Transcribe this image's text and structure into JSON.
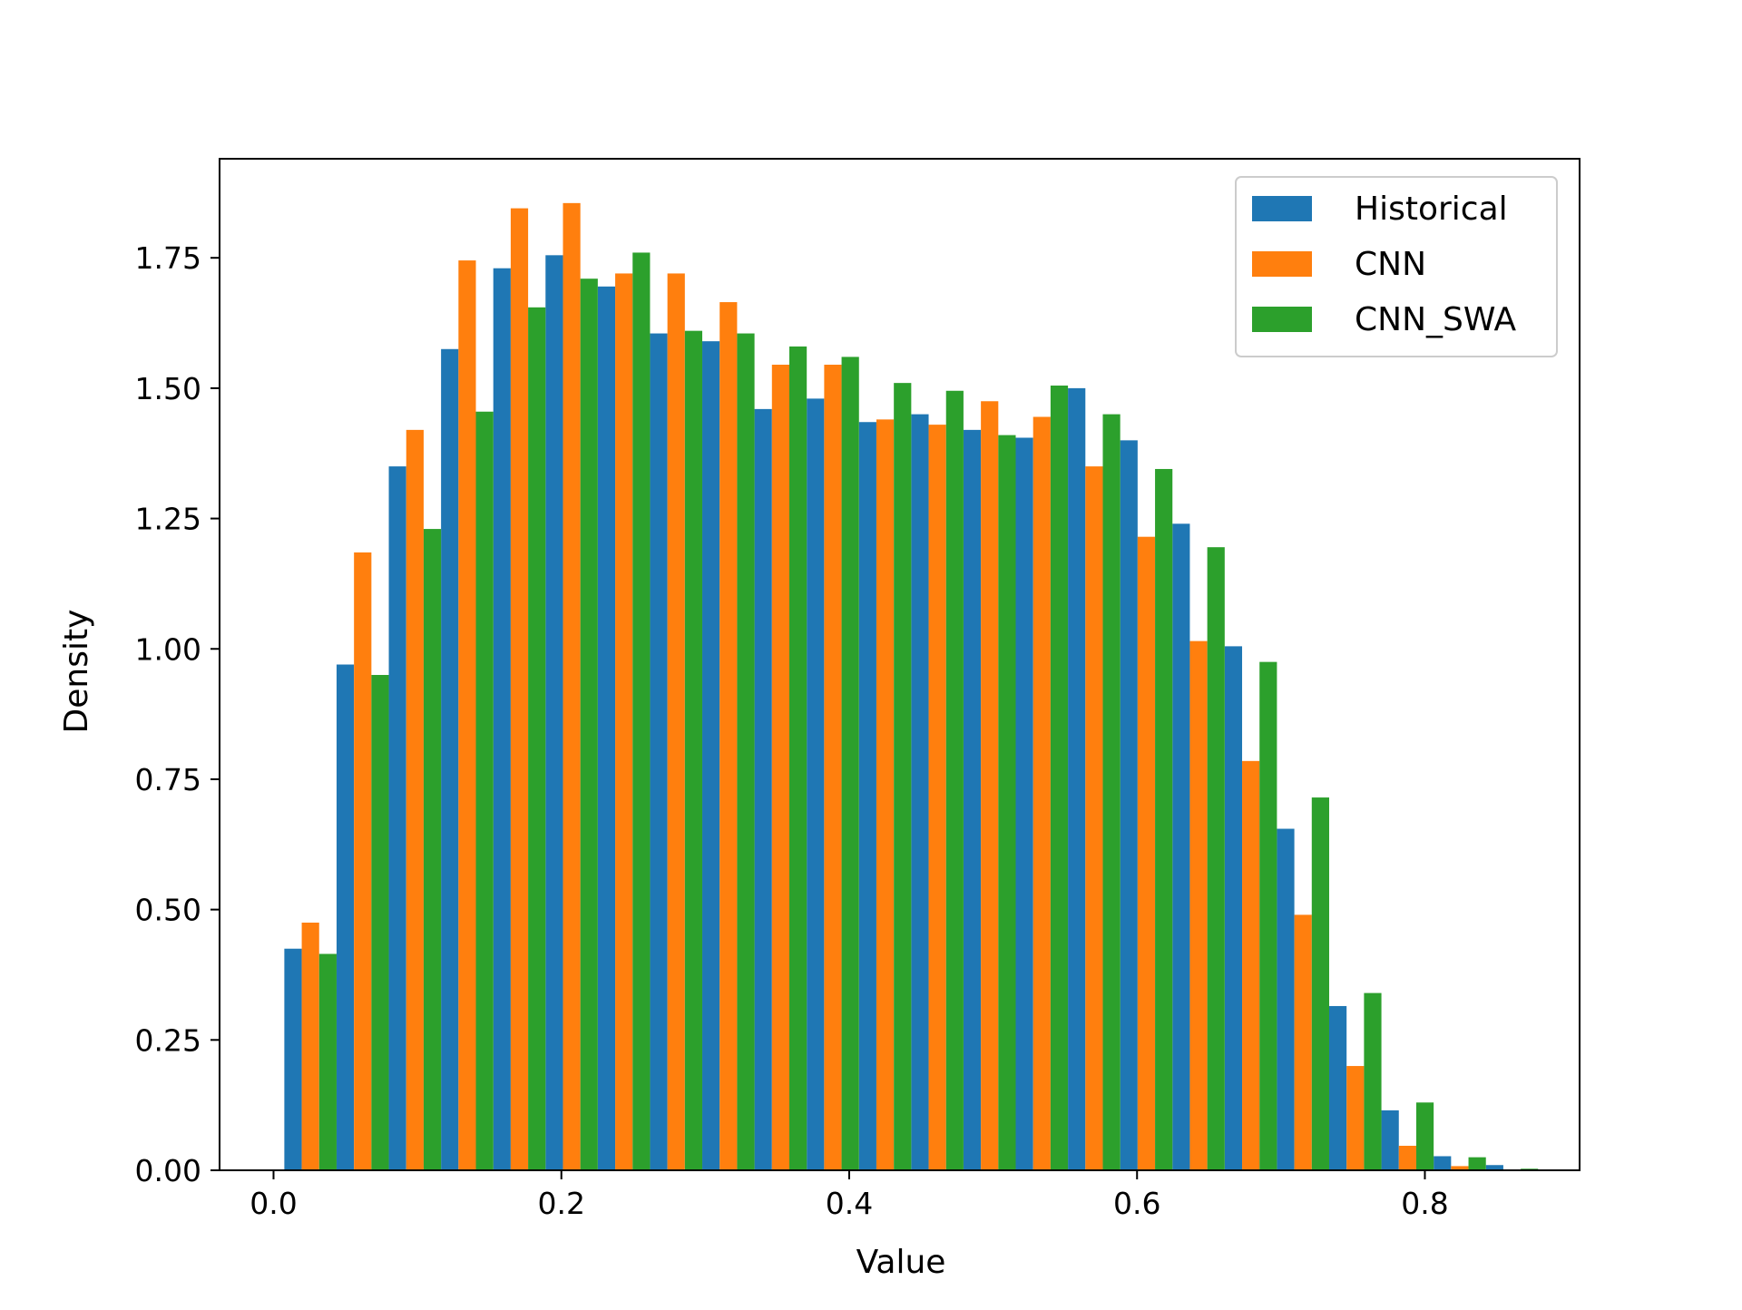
{
  "chart_data": {
    "type": "bar",
    "xlabel": "Value",
    "ylabel": "Density",
    "xlim": [
      -0.0375,
      0.9075
    ],
    "ylim": [
      0,
      1.94
    ],
    "x_ticks": [
      "0.0",
      "0.2",
      "0.4",
      "0.6",
      "0.8"
    ],
    "y_ticks": [
      "0.00",
      "0.25",
      "0.50",
      "0.75",
      "1.00",
      "1.25",
      "1.50",
      "1.75"
    ],
    "grid": false,
    "legend_position": "top-right",
    "bin_start": 0.0075,
    "bin_width": 0.0363,
    "bin_count": 24,
    "series": [
      {
        "name": "Historical",
        "color": "#1f77b4",
        "values": [
          0.425,
          0.97,
          1.35,
          1.575,
          1.73,
          1.755,
          1.695,
          1.605,
          1.59,
          1.46,
          1.48,
          1.435,
          1.45,
          1.42,
          1.405,
          1.5,
          1.4,
          1.24,
          1.005,
          0.655,
          0.315,
          0.115,
          0.027,
          0.01
        ]
      },
      {
        "name": "CNN",
        "color": "#ff7f0e",
        "values": [
          0.475,
          1.185,
          1.42,
          1.745,
          1.845,
          1.855,
          1.72,
          1.72,
          1.665,
          1.545,
          1.545,
          1.44,
          1.43,
          1.475,
          1.445,
          1.35,
          1.215,
          1.015,
          0.785,
          0.49,
          0.2,
          0.047,
          0.008,
          0.0
        ]
      },
      {
        "name": "CNN_SWA",
        "color": "#2ca02c",
        "values": [
          0.415,
          0.95,
          1.23,
          1.455,
          1.655,
          1.71,
          1.76,
          1.61,
          1.605,
          1.58,
          1.56,
          1.51,
          1.495,
          1.41,
          1.505,
          1.45,
          1.345,
          1.195,
          0.975,
          0.715,
          0.34,
          0.13,
          0.025,
          0.003
        ]
      }
    ]
  }
}
